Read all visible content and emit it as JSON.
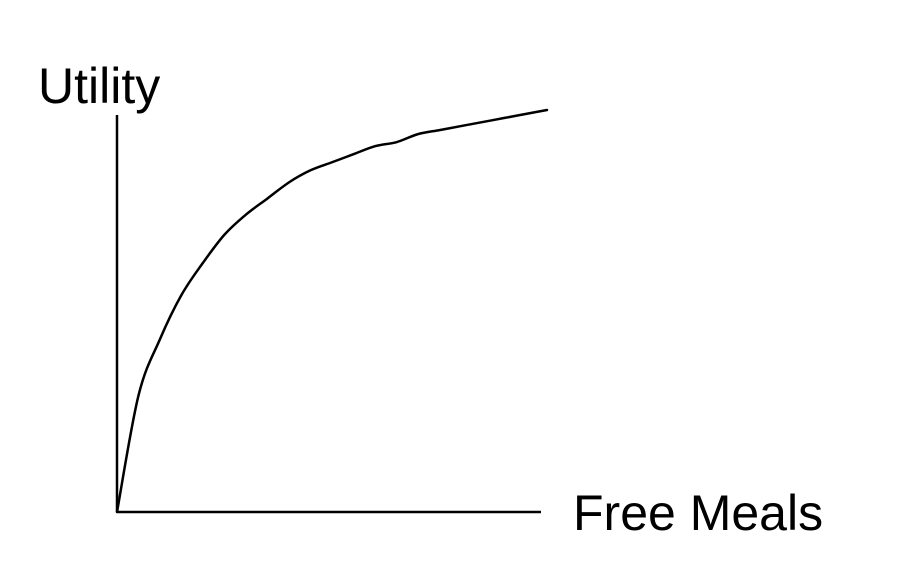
{
  "chart_data": {
    "type": "line",
    "title": "",
    "xlabel": "Free Meals",
    "ylabel": "Utility",
    "xlim": [
      0,
      1
    ],
    "ylim": [
      0,
      1
    ],
    "grid": false,
    "ticks": false,
    "series": [
      {
        "color": "#000000",
        "x": [
          0,
          0.05,
          0.1,
          0.15,
          0.2,
          0.25,
          0.3,
          0.35,
          0.4,
          0.45,
          0.5,
          0.55,
          0.6,
          0.65,
          0.7,
          0.75,
          0.8,
          0.85,
          0.9,
          0.95,
          1.0
        ],
        "y": [
          0,
          0.29,
          0.43,
          0.54,
          0.62,
          0.69,
          0.74,
          0.78,
          0.82,
          0.85,
          0.87,
          0.89,
          0.91,
          0.92,
          0.94,
          0.95,
          0.96,
          0.97,
          0.98,
          0.99,
          1.0
        ]
      }
    ]
  }
}
